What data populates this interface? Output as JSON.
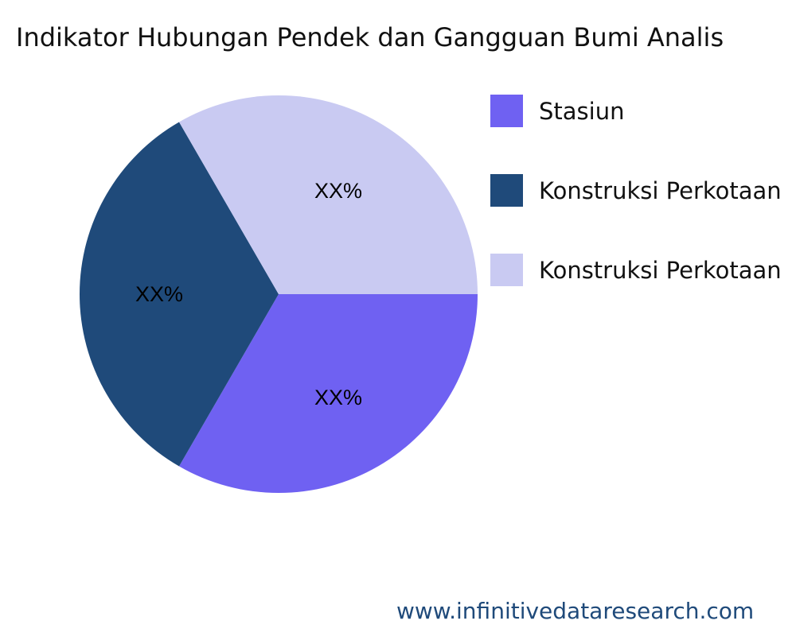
{
  "chart_data": {
    "type": "pie",
    "title": "Indikator Hubungan Pendek dan Gangguan Bumi Analis",
    "slices": [
      {
        "name": "Stasiun",
        "value": 33.33,
        "label": "XX%",
        "color": "#6f61f2"
      },
      {
        "name": "Konstruksi Perkotaan",
        "value": 33.33,
        "label": "XX%",
        "color": "#1f4a7a"
      },
      {
        "name": "Konstruksi Perkotaan",
        "value": 33.33,
        "label": "XX%",
        "color": "#c9caf2"
      }
    ],
    "legend_placement": "right"
  },
  "watermark": "www.infinitivedataresearch.com"
}
